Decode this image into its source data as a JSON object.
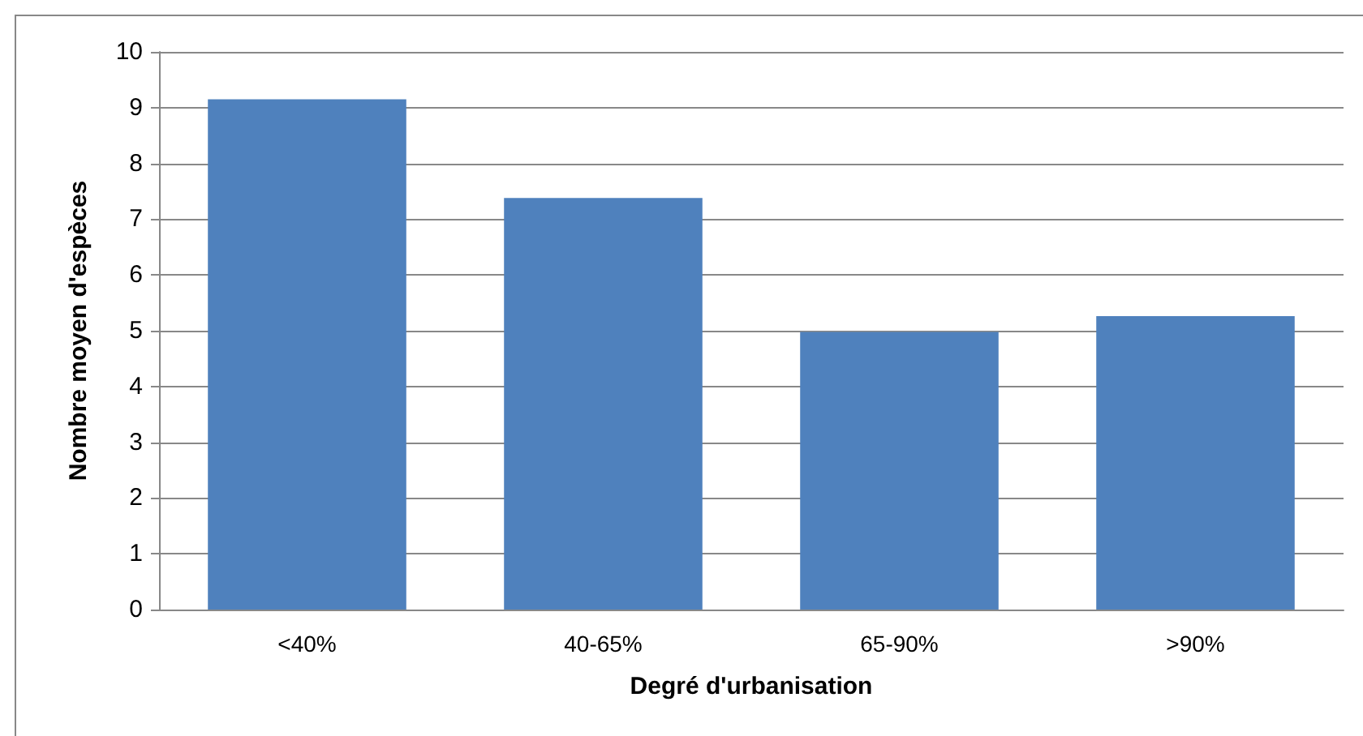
{
  "chart_data": {
    "type": "bar",
    "xlabel": "Degré d'urbanisation",
    "ylabel": "Nombre moyen d'espèces",
    "categories": [
      "<40%",
      "40-65%",
      "65-90%",
      ">90%"
    ],
    "values": [
      9.15,
      7.38,
      4.98,
      5.26
    ],
    "color": "#4f81bd",
    "ylim": [
      0,
      10
    ],
    "yticks": [
      0,
      1,
      2,
      3,
      4,
      5,
      6,
      7,
      8,
      9,
      10
    ],
    "grid": "y"
  }
}
